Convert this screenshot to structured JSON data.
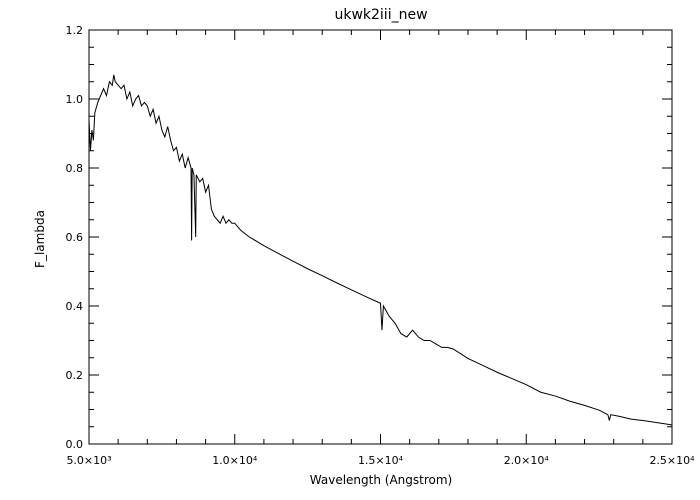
{
  "chart_data": {
    "type": "line",
    "title": "ukwk2iii_new",
    "xlabel": "Wavelength (Angstrom)",
    "ylabel": "F_lambda",
    "xlim": [
      5000,
      25000
    ],
    "ylim": [
      0.0,
      1.2
    ],
    "grid": false,
    "legend": "none",
    "x_ticks": [
      {
        "value": 5000,
        "label": "5.0×10³"
      },
      {
        "value": 10000,
        "label": "1.0×10⁴"
      },
      {
        "value": 15000,
        "label": "1.5×10⁴"
      },
      {
        "value": 20000,
        "label": "2.0×10⁴"
      },
      {
        "value": 25000,
        "label": "2.5×10⁴"
      }
    ],
    "y_ticks": [
      {
        "value": 0.0,
        "label": "0.0"
      },
      {
        "value": 0.2,
        "label": "0.2"
      },
      {
        "value": 0.4,
        "label": "0.4"
      },
      {
        "value": 0.6,
        "label": "0.6"
      },
      {
        "value": 0.8,
        "label": "0.8"
      },
      {
        "value": 1.0,
        "label": "1.0"
      },
      {
        "value": 1.2,
        "label": "1.2"
      }
    ],
    "series": [
      {
        "color": "#000000",
        "points": [
          [
            5000,
            0.94
          ],
          [
            5050,
            0.85
          ],
          [
            5100,
            0.91
          ],
          [
            5150,
            0.88
          ],
          [
            5200,
            0.96
          ],
          [
            5300,
            0.99
          ],
          [
            5400,
            1.01
          ],
          [
            5500,
            1.03
          ],
          [
            5600,
            1.01
          ],
          [
            5700,
            1.05
          ],
          [
            5800,
            1.04
          ],
          [
            5850,
            1.07
          ],
          [
            5900,
            1.05
          ],
          [
            6000,
            1.04
          ],
          [
            6100,
            1.03
          ],
          [
            6200,
            1.04
          ],
          [
            6300,
            1.0
          ],
          [
            6400,
            1.02
          ],
          [
            6500,
            0.98
          ],
          [
            6600,
            1.0
          ],
          [
            6700,
            1.01
          ],
          [
            6800,
            0.98
          ],
          [
            6900,
            0.99
          ],
          [
            7000,
            0.98
          ],
          [
            7100,
            0.95
          ],
          [
            7200,
            0.97
          ],
          [
            7300,
            0.93
          ],
          [
            7400,
            0.95
          ],
          [
            7500,
            0.91
          ],
          [
            7600,
            0.89
          ],
          [
            7700,
            0.92
          ],
          [
            7800,
            0.88
          ],
          [
            7900,
            0.85
          ],
          [
            8000,
            0.86
          ],
          [
            8100,
            0.82
          ],
          [
            8200,
            0.84
          ],
          [
            8300,
            0.8
          ],
          [
            8400,
            0.83
          ],
          [
            8500,
            0.8
          ],
          [
            8520,
            0.59
          ],
          [
            8540,
            0.8
          ],
          [
            8600,
            0.78
          ],
          [
            8660,
            0.6
          ],
          [
            8680,
            0.78
          ],
          [
            8800,
            0.76
          ],
          [
            8900,
            0.77
          ],
          [
            9000,
            0.73
          ],
          [
            9100,
            0.75
          ],
          [
            9200,
            0.68
          ],
          [
            9300,
            0.66
          ],
          [
            9400,
            0.65
          ],
          [
            9500,
            0.64
          ],
          [
            9600,
            0.66
          ],
          [
            9700,
            0.64
          ],
          [
            9800,
            0.65
          ],
          [
            9900,
            0.64
          ],
          [
            10000,
            0.64
          ],
          [
            10200,
            0.62
          ],
          [
            10500,
            0.6
          ],
          [
            11000,
            0.575
          ],
          [
            11500,
            0.552
          ],
          [
            12000,
            0.53
          ],
          [
            12500,
            0.508
          ],
          [
            13000,
            0.488
          ],
          [
            13500,
            0.467
          ],
          [
            14000,
            0.447
          ],
          [
            14500,
            0.427
          ],
          [
            15000,
            0.408
          ],
          [
            15050,
            0.33
          ],
          [
            15100,
            0.4
          ],
          [
            15300,
            0.37
          ],
          [
            15500,
            0.35
          ],
          [
            15700,
            0.32
          ],
          [
            15900,
            0.31
          ],
          [
            16100,
            0.33
          ],
          [
            16300,
            0.31
          ],
          [
            16500,
            0.3
          ],
          [
            16700,
            0.3
          ],
          [
            16900,
            0.29
          ],
          [
            17100,
            0.28
          ],
          [
            17300,
            0.28
          ],
          [
            17500,
            0.275
          ],
          [
            18000,
            0.248
          ],
          [
            18500,
            0.228
          ],
          [
            19000,
            0.208
          ],
          [
            19500,
            0.19
          ],
          [
            20000,
            0.172
          ],
          [
            20500,
            0.15
          ],
          [
            21000,
            0.139
          ],
          [
            21500,
            0.124
          ],
          [
            22000,
            0.112
          ],
          [
            22500,
            0.098
          ],
          [
            22800,
            0.085
          ],
          [
            22850,
            0.068
          ],
          [
            22900,
            0.085
          ],
          [
            23200,
            0.08
          ],
          [
            23600,
            0.072
          ],
          [
            24000,
            0.068
          ],
          [
            24400,
            0.063
          ],
          [
            24800,
            0.058
          ],
          [
            25000,
            0.055
          ]
        ]
      }
    ]
  }
}
